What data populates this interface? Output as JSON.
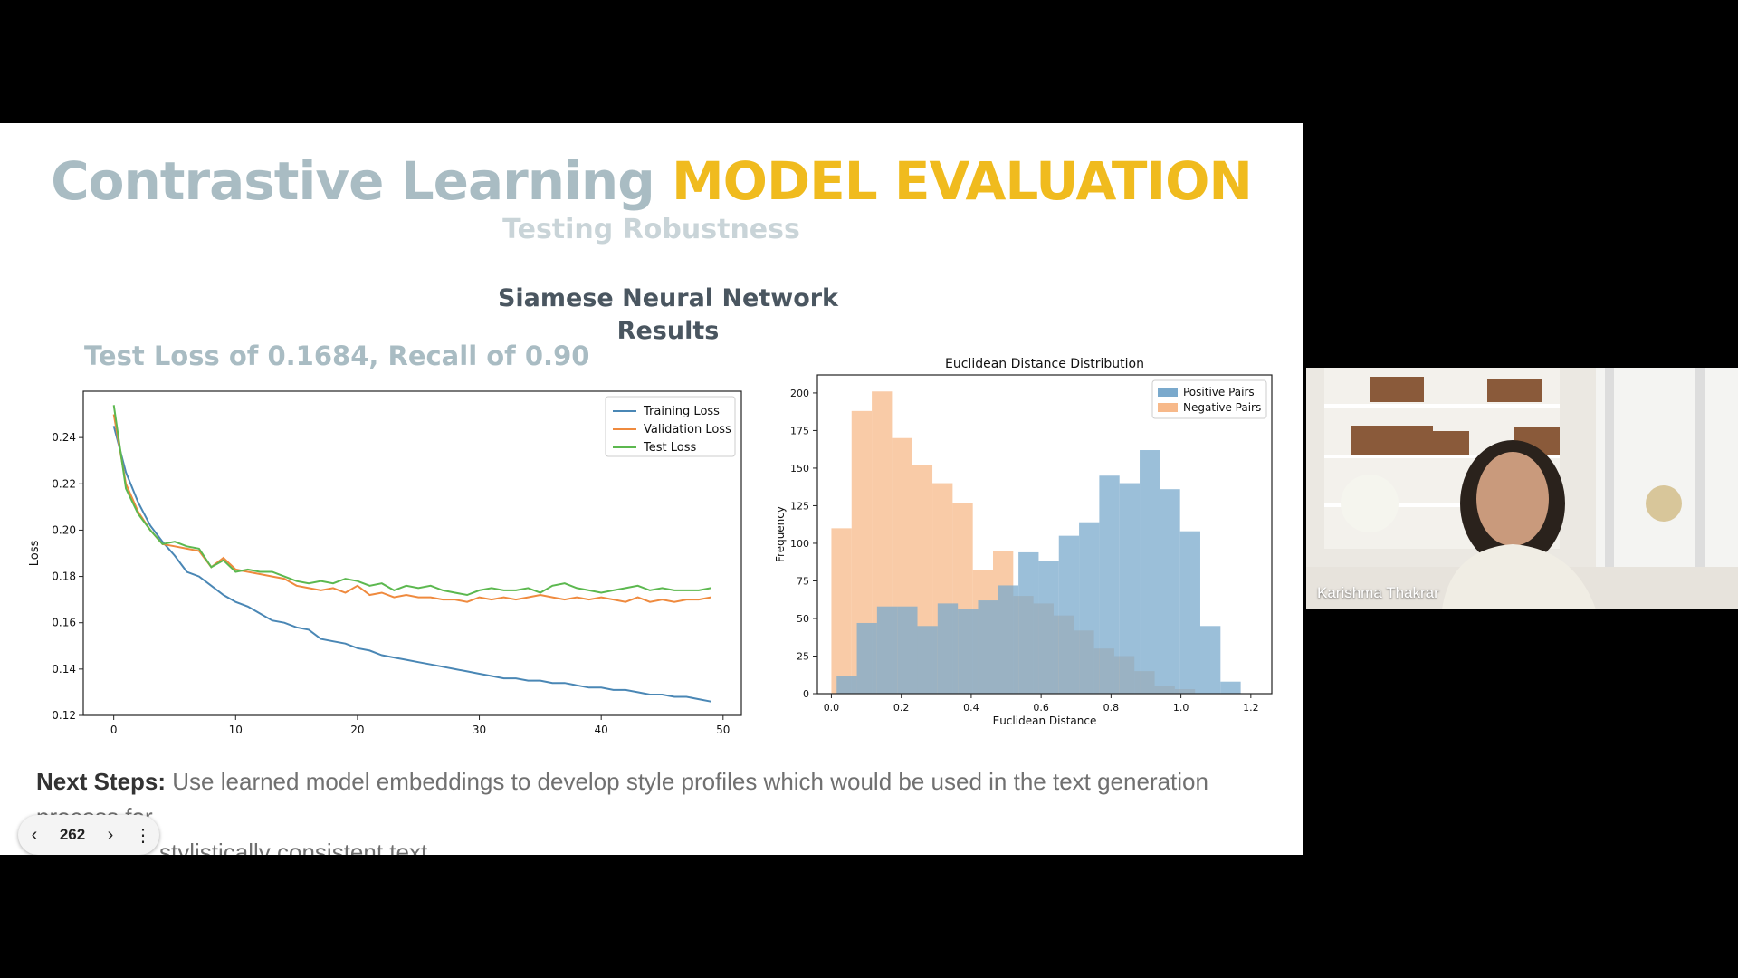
{
  "slide": {
    "title_part1": "Contrastive Learning",
    "title_part2": "MODEL EVALUATION",
    "subtitle": "Testing Robustness",
    "section_title_line1": "Siamese Neural Network",
    "section_title_line2": "Results",
    "metrics_text": "Test Loss of 0.1684, Recall of 0.90",
    "next_steps_label": "Next Steps:",
    "next_steps_line1": "Use learned model embeddings to develop style profiles which would be used in the text generation process for",
    "next_steps_line2": "stylistically consistent text"
  },
  "navigation": {
    "prev_icon": "chevron-left-icon",
    "page_number": "262",
    "next_icon": "chevron-right-icon",
    "menu_icon": "more-vertical-icon"
  },
  "participant": {
    "name": "Karishma Thakrar"
  },
  "colors": {
    "title_gray": "#a9bcc3",
    "title_yellow": "#f0bb1e",
    "training": "#4a87b5",
    "validation": "#ef8a3e",
    "test": "#5cb84f",
    "positive": "#7aa9cc",
    "negative": "#f7b98a"
  },
  "chart_data": [
    {
      "type": "line",
      "title": "",
      "xlabel": "Epoch",
      "ylabel": "Loss",
      "xlim": [
        -2.5,
        51.5
      ],
      "ylim": [
        0.12,
        0.26
      ],
      "xticks": [
        0,
        10,
        20,
        30,
        40,
        50
      ],
      "yticks": [
        0.12,
        0.14,
        0.16,
        0.18,
        0.2,
        0.22,
        0.24
      ],
      "legend_position": "top-right",
      "grid": false,
      "x": [
        0,
        1,
        2,
        3,
        4,
        5,
        6,
        7,
        8,
        9,
        10,
        11,
        12,
        13,
        14,
        15,
        16,
        17,
        18,
        19,
        20,
        21,
        22,
        23,
        24,
        25,
        26,
        27,
        28,
        29,
        30,
        31,
        32,
        33,
        34,
        35,
        36,
        37,
        38,
        39,
        40,
        41,
        42,
        43,
        44,
        45,
        46,
        47,
        48,
        49
      ],
      "series": [
        {
          "name": "Training Loss",
          "color": "#4a87b5",
          "values": [
            0.245,
            0.225,
            0.212,
            0.202,
            0.195,
            0.189,
            0.182,
            0.18,
            0.176,
            0.172,
            0.169,
            0.167,
            0.164,
            0.161,
            0.16,
            0.158,
            0.157,
            0.153,
            0.152,
            0.151,
            0.149,
            0.148,
            0.146,
            0.145,
            0.144,
            0.143,
            0.142,
            0.141,
            0.14,
            0.139,
            0.138,
            0.137,
            0.136,
            0.136,
            0.135,
            0.135,
            0.134,
            0.134,
            0.133,
            0.132,
            0.132,
            0.131,
            0.131,
            0.13,
            0.129,
            0.129,
            0.128,
            0.128,
            0.127,
            0.126
          ]
        },
        {
          "name": "Validation Loss",
          "color": "#ef8a3e",
          "values": [
            0.25,
            0.22,
            0.208,
            0.2,
            0.194,
            0.193,
            0.192,
            0.191,
            0.184,
            0.188,
            0.183,
            0.182,
            0.181,
            0.18,
            0.179,
            0.176,
            0.175,
            0.174,
            0.175,
            0.173,
            0.176,
            0.172,
            0.173,
            0.171,
            0.172,
            0.171,
            0.171,
            0.17,
            0.17,
            0.169,
            0.171,
            0.17,
            0.171,
            0.17,
            0.171,
            0.172,
            0.171,
            0.17,
            0.171,
            0.17,
            0.171,
            0.17,
            0.169,
            0.171,
            0.169,
            0.17,
            0.169,
            0.17,
            0.17,
            0.171
          ]
        },
        {
          "name": "Test Loss",
          "color": "#5cb84f",
          "values": [
            0.254,
            0.218,
            0.207,
            0.2,
            0.194,
            0.195,
            0.193,
            0.192,
            0.184,
            0.187,
            0.182,
            0.183,
            0.182,
            0.182,
            0.18,
            0.178,
            0.177,
            0.178,
            0.177,
            0.179,
            0.178,
            0.176,
            0.177,
            0.174,
            0.176,
            0.175,
            0.176,
            0.174,
            0.173,
            0.172,
            0.174,
            0.175,
            0.174,
            0.174,
            0.175,
            0.173,
            0.176,
            0.177,
            0.175,
            0.174,
            0.173,
            0.174,
            0.175,
            0.176,
            0.174,
            0.175,
            0.174,
            0.174,
            0.174,
            0.175
          ]
        }
      ]
    },
    {
      "type": "bar",
      "subtype": "histogram",
      "title": "Euclidean Distance Distribution",
      "xlabel": "Euclidean Distance",
      "ylabel": "Frequency",
      "xlim": [
        -0.04,
        1.26
      ],
      "ylim": [
        0,
        212
      ],
      "xticks": [
        0.0,
        0.2,
        0.4,
        0.6,
        0.8,
        1.0,
        1.2
      ],
      "yticks": [
        0,
        25,
        50,
        75,
        100,
        125,
        150,
        175,
        200
      ],
      "legend_position": "top-right",
      "grid": false,
      "series": [
        {
          "name": "Positive Pairs",
          "color": "#7aa9cc",
          "bin_start": 0.015,
          "bin_width": 0.0578,
          "values": [
            12,
            47,
            58,
            58,
            45,
            60,
            56,
            62,
            72,
            94,
            88,
            105,
            114,
            145,
            140,
            162,
            136,
            108,
            45,
            8
          ]
        },
        {
          "name": "Negative Pairs",
          "color": "#f7b98a",
          "bin_start": 0.0,
          "bin_width": 0.0578,
          "values": [
            110,
            188,
            201,
            170,
            152,
            140,
            127,
            82,
            95,
            65,
            60,
            52,
            42,
            30,
            25,
            15,
            5,
            3,
            0,
            0
          ]
        }
      ]
    }
  ]
}
